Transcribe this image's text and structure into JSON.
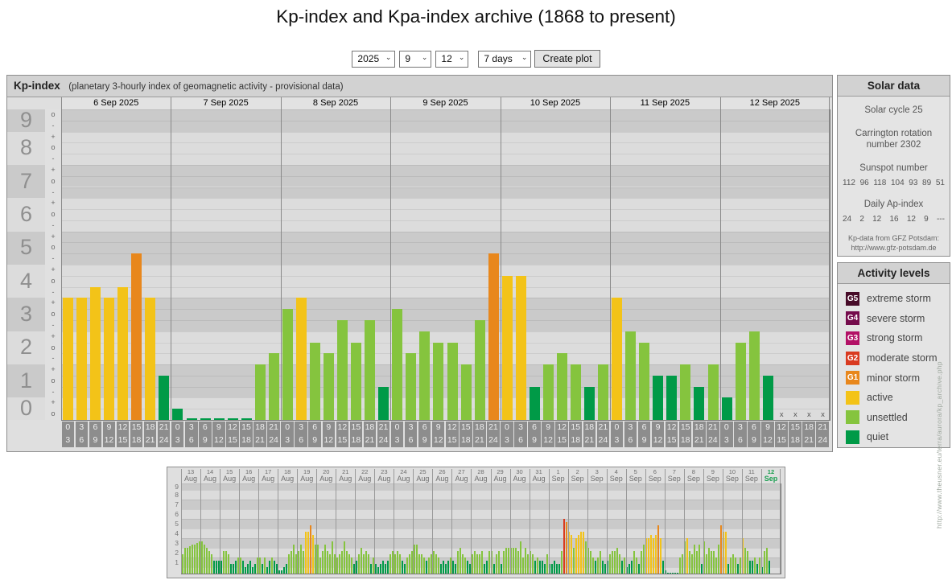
{
  "page": {
    "title": "Kp-index and Kpa-index archive (1868 to present)"
  },
  "controls": {
    "year": "2025",
    "month": "9",
    "day": "12",
    "range": "7 days",
    "create_button": "Create plot"
  },
  "colors": {
    "g5": "#470b28",
    "g4": "#750c4c",
    "g3": "#b31166",
    "g2": "#d93a20",
    "g1": "#e8871c",
    "active": "#f3c318",
    "unsettled": "#85c43e",
    "quiet": "#009a47",
    "band_dark": "#cacaca",
    "band_light": "#dcdcdc",
    "tick_col_bg": "#e0e0e0",
    "date_row_bg": "#e2e2e2",
    "highlight_date": "#1a9e50"
  },
  "kp_panel": {
    "title": "Kp-index",
    "subtitle": "(planetary 3-hourly index of geomagnetic activity - provisional data)",
    "y_numbers": [
      9,
      8,
      7,
      6,
      5,
      4,
      3,
      2,
      1,
      0
    ],
    "y_ticks": [
      "o",
      "-",
      "+",
      "o",
      "-",
      "+",
      "o",
      "-",
      "+",
      "o",
      "-",
      "+",
      "o",
      "-",
      "+",
      "o",
      "-",
      "+",
      "o",
      "-",
      "+",
      "o",
      "-",
      "+",
      "o",
      "-",
      "+",
      "o"
    ],
    "hour_slots": [
      [
        "0",
        "3"
      ],
      [
        "3",
        "6"
      ],
      [
        "6",
        "9"
      ],
      [
        "9",
        "12"
      ],
      [
        "12",
        "15"
      ],
      [
        "15",
        "18"
      ],
      [
        "18",
        "21"
      ],
      [
        "21",
        "24"
      ]
    ],
    "no_data_marker": "x"
  },
  "chart_data": {
    "type": "bar",
    "title": "Kp-index (planetary 3-hourly index of geomagnetic activity - provisional data)",
    "ylabel": "Kp",
    "ylim": [
      0,
      9.33
    ],
    "interval_hours": 3,
    "legend_position": "right",
    "days": [
      {
        "date": "6 Sep 2025",
        "values": [
          3.67,
          3.67,
          4.0,
          3.67,
          4.0,
          5.0,
          3.67,
          1.33
        ]
      },
      {
        "date": "7 Sep 2025",
        "values": [
          0.33,
          0,
          0,
          0,
          0,
          0,
          1.67,
          2.0
        ]
      },
      {
        "date": "8 Sep 2025",
        "values": [
          3.33,
          3.67,
          2.33,
          2.0,
          3.0,
          2.33,
          3.0,
          1.0
        ]
      },
      {
        "date": "9 Sep 2025",
        "values": [
          3.33,
          2.0,
          2.67,
          2.33,
          2.33,
          1.67,
          3.0,
          5.0
        ]
      },
      {
        "date": "10 Sep 2025",
        "values": [
          4.33,
          4.33,
          1.0,
          1.67,
          2.0,
          1.67,
          1.0,
          1.67
        ]
      },
      {
        "date": "11 Sep 2025",
        "values": [
          3.67,
          2.67,
          2.33,
          1.33,
          1.33,
          1.67,
          1.0,
          1.67
        ]
      },
      {
        "date": "12 Sep 2025",
        "values": [
          0.67,
          2.33,
          2.67,
          1.33,
          null,
          null,
          null,
          null
        ]
      }
    ],
    "mini": {
      "title": "Kp-index 13 Aug - 12 Sep 2025 (overview)",
      "ylim": [
        0,
        9.33
      ],
      "days": [
        {
          "day": "13",
          "month": "Aug",
          "values": [
            2.0,
            2.7,
            2.7,
            2.8,
            3.0,
            3.0,
            3.2,
            3.3
          ]
        },
        {
          "day": "14",
          "month": "Aug",
          "values": [
            3.3,
            3.0,
            2.7,
            2.3,
            2.0,
            1.3,
            1.3,
            1.3
          ]
        },
        {
          "day": "15",
          "month": "Aug",
          "values": [
            1.3,
            2.3,
            2.3,
            2.0,
            1.0,
            1.0,
            1.3,
            1.7
          ]
        },
        {
          "day": "16",
          "month": "Aug",
          "values": [
            1.7,
            1.3,
            0.7,
            1.0,
            1.3,
            0.7,
            1.0,
            1.7
          ]
        },
        {
          "day": "17",
          "month": "Aug",
          "values": [
            1.7,
            1.0,
            1.7,
            0.7,
            1.3,
            1.7,
            1.3,
            1.0
          ]
        },
        {
          "day": "18",
          "month": "Aug",
          "values": [
            0.3,
            0.3,
            0.7,
            1.0,
            2.0,
            2.3,
            3.0,
            2.0
          ]
        },
        {
          "day": "19",
          "month": "Aug",
          "values": [
            2.3,
            3.0,
            2.3,
            4.3,
            4.3,
            5.0,
            4.0,
            3.0
          ]
        },
        {
          "day": "20",
          "month": "Aug",
          "values": [
            3.0,
            1.7,
            2.3,
            3.0,
            2.3,
            2.0,
            3.3,
            2.0
          ]
        },
        {
          "day": "21",
          "month": "Aug",
          "values": [
            1.7,
            2.0,
            2.3,
            3.3,
            2.3,
            2.0,
            1.7,
            1.0
          ]
        },
        {
          "day": "22",
          "month": "Aug",
          "values": [
            1.3,
            2.0,
            2.7,
            2.0,
            2.3,
            2.0,
            1.0,
            1.7
          ]
        },
        {
          "day": "23",
          "month": "Aug",
          "values": [
            1.0,
            0.7,
            1.0,
            1.3,
            1.0,
            1.3,
            2.0,
            2.3
          ]
        },
        {
          "day": "24",
          "month": "Aug",
          "values": [
            2.0,
            2.3,
            2.0,
            1.3,
            1.0,
            1.7,
            2.0,
            2.3
          ]
        },
        {
          "day": "25",
          "month": "Aug",
          "values": [
            3.0,
            3.0,
            2.0,
            2.0,
            1.7,
            1.3,
            1.7,
            2.0
          ]
        },
        {
          "day": "26",
          "month": "Aug",
          "values": [
            2.3,
            2.0,
            1.7,
            1.0,
            1.3,
            1.0,
            1.3,
            1.7
          ]
        },
        {
          "day": "27",
          "month": "Aug",
          "values": [
            1.3,
            1.0,
            2.3,
            2.7,
            2.0,
            1.7,
            1.3,
            1.0
          ]
        },
        {
          "day": "28",
          "month": "Aug",
          "values": [
            2.0,
            2.3,
            2.0,
            2.0,
            2.3,
            1.0,
            1.3,
            2.3
          ]
        },
        {
          "day": "29",
          "month": "Aug",
          "values": [
            2.3,
            1.0,
            2.0,
            2.3,
            1.0,
            2.3,
            2.7,
            2.7
          ]
        },
        {
          "day": "30",
          "month": "Aug",
          "values": [
            2.7,
            2.7,
            2.7,
            2.3,
            3.3,
            1.7,
            2.7,
            2.0
          ]
        },
        {
          "day": "31",
          "month": "Aug",
          "values": [
            2.3,
            2.0,
            1.3,
            1.7,
            1.3,
            1.3,
            1.0,
            2.0
          ]
        },
        {
          "day": "1",
          "month": "Sep",
          "values": [
            1.0,
            1.0,
            1.3,
            1.0,
            1.0,
            2.3,
            5.7,
            5.3
          ]
        },
        {
          "day": "2",
          "month": "Sep",
          "values": [
            4.3,
            4.0,
            2.7,
            3.7,
            4.0,
            4.3,
            4.3,
            3.3
          ]
        },
        {
          "day": "3",
          "month": "Sep",
          "values": [
            2.7,
            2.3,
            1.7,
            1.3,
            1.7,
            2.3,
            1.3,
            1.0
          ]
        },
        {
          "day": "4",
          "month": "Sep",
          "values": [
            1.3,
            2.0,
            2.3,
            2.3,
            2.7,
            2.0,
            1.3,
            1.7
          ]
        },
        {
          "day": "5",
          "month": "Sep",
          "values": [
            0.7,
            1.0,
            1.3,
            2.3,
            1.7,
            1.0,
            2.3,
            3.0
          ]
        },
        {
          "day": "6",
          "month": "Sep",
          "values": [
            3.67,
            3.67,
            4.0,
            3.67,
            4.0,
            5.0,
            3.67,
            1.33
          ]
        },
        {
          "day": "7",
          "month": "Sep",
          "values": [
            0.33,
            0,
            0,
            0,
            0,
            0,
            1.67,
            2.0
          ]
        },
        {
          "day": "8",
          "month": "Sep",
          "values": [
            3.33,
            3.67,
            2.33,
            2.0,
            3.0,
            2.33,
            3.0,
            1.0
          ]
        },
        {
          "day": "9",
          "month": "Sep",
          "values": [
            3.33,
            2.0,
            2.67,
            2.33,
            2.33,
            1.67,
            3.0,
            5.0
          ]
        },
        {
          "day": "10",
          "month": "Sep",
          "values": [
            4.33,
            4.33,
            1.0,
            1.67,
            2.0,
            1.67,
            1.0,
            1.67
          ]
        },
        {
          "day": "11",
          "month": "Sep",
          "values": [
            3.67,
            2.67,
            2.33,
            1.33,
            1.33,
            1.67,
            1.0,
            1.67
          ]
        },
        {
          "day": "12",
          "month": "Sep",
          "values": [
            0.67,
            2.33,
            2.67,
            1.33,
            null,
            null,
            null,
            null
          ],
          "highlight": true
        }
      ]
    }
  },
  "solar_panel": {
    "title": "Solar data",
    "cycle": "Solar cycle 25",
    "carrington": "Carrington rotation number 2302",
    "sunspot_label": "Sunspot number",
    "sunspot_values": [
      "112",
      "96",
      "118",
      "104",
      "93",
      "89",
      "51"
    ],
    "ap_label": "Daily Ap-index",
    "ap_values": [
      "24",
      "2",
      "12",
      "16",
      "12",
      "9",
      "---"
    ],
    "source": "Kp-data from GFZ Potsdam:",
    "source_url": "http://www.gfz-potsdam.de"
  },
  "legend_panel": {
    "title": "Activity levels",
    "items": [
      {
        "code": "G5",
        "label": "extreme storm",
        "color_key": "g5"
      },
      {
        "code": "G4",
        "label": "severe storm",
        "color_key": "g4"
      },
      {
        "code": "G3",
        "label": "strong storm",
        "color_key": "g3"
      },
      {
        "code": "G2",
        "label": "moderate storm",
        "color_key": "g2"
      },
      {
        "code": "G1",
        "label": "minor storm",
        "color_key": "g1"
      },
      {
        "code": "",
        "label": "active",
        "color_key": "active"
      },
      {
        "code": "",
        "label": "unsettled",
        "color_key": "unsettled"
      },
      {
        "code": "",
        "label": "quiet",
        "color_key": "quiet"
      }
    ]
  },
  "watermark": "http://www.theusner.eu/terra/aurora/kp_archive.php"
}
